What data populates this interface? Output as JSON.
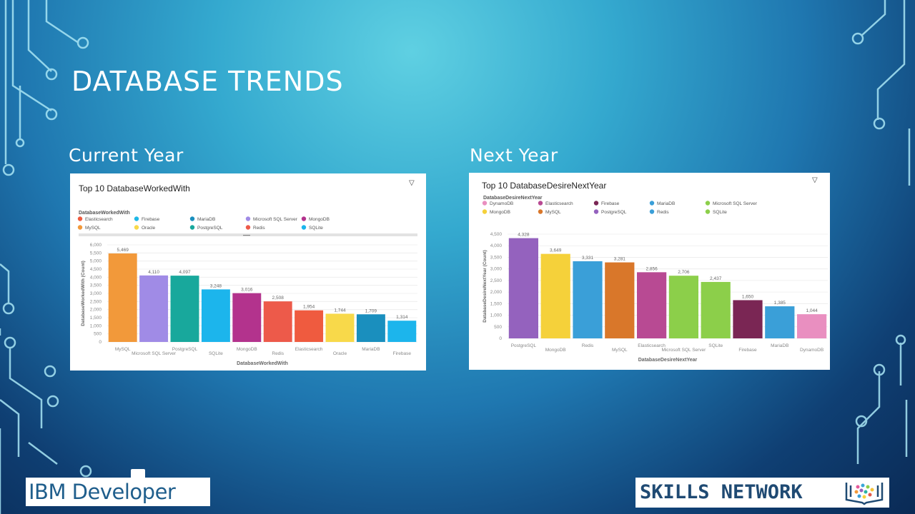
{
  "slide": {
    "title": "DATABASE TRENDS",
    "left_label": "Current Year",
    "right_label": "Next Year",
    "ibm_logo": "IBM Developer",
    "skills_logo": "SKILLS NETWORK"
  },
  "chart_data": [
    {
      "type": "bar",
      "title": "Top 10 DatabaseWorkedWith",
      "legend_title": "DatabaseWorkedWith",
      "legend": [
        {
          "name": "Elasticsearch",
          "color": "#ef5b3f"
        },
        {
          "name": "Firebase",
          "color": "#1fb8e6"
        },
        {
          "name": "MariaDB",
          "color": "#1a8fbe"
        },
        {
          "name": "Microsoft SQL Server",
          "color": "#a08be6"
        },
        {
          "name": "MongoDB",
          "color": "#b3338d"
        },
        {
          "name": "MySQL",
          "color": "#f2993a"
        },
        {
          "name": "Oracle",
          "color": "#f8d94a"
        },
        {
          "name": "PostgreSQL",
          "color": "#18a89c"
        },
        {
          "name": "Redis",
          "color": "#ed5a4a"
        },
        {
          "name": "SQLite",
          "color": "#1cb5ec"
        }
      ],
      "categories": [
        "MySQL",
        "Microsoft SQL Server",
        "PostgreSQL",
        "SQLite",
        "MongoDB",
        "Redis",
        "Elasticsearch",
        "Oracle",
        "MariaDB",
        "Firebase"
      ],
      "values": [
        5469,
        4110,
        4097,
        3248,
        3016,
        2508,
        1954,
        1744,
        1709,
        1314
      ],
      "value_labels": [
        "5,469",
        "4,110",
        "4,097",
        "3,248",
        "3,016",
        "2,508",
        "1,954",
        "1,744",
        "1,709",
        "1,314"
      ],
      "colors": [
        "#f2993a",
        "#a08be6",
        "#18a89c",
        "#1cb5ec",
        "#b3338d",
        "#ed5a4a",
        "#ef5b3f",
        "#f8d94a",
        "#1a8fbe",
        "#1cb5ec"
      ],
      "yticks": [
        0,
        500,
        1000,
        1500,
        2000,
        2500,
        3000,
        3500,
        4000,
        4500,
        5000,
        5500,
        6000
      ],
      "ytick_labels": [
        "0",
        "500",
        "1,000",
        "1,500",
        "2,000",
        "2,500",
        "3,000",
        "3,500",
        "4,000",
        "4,500",
        "5,000",
        "5,500",
        "6,000"
      ],
      "ylim": [
        0,
        6000
      ],
      "xlabel": "DatabaseWorkedWith",
      "ylabel": "DatabaseWorkedWith (Count)",
      "grid": true
    },
    {
      "type": "bar",
      "title": "Top 10 DatabaseDesireNextYear",
      "legend_title": "DatabaseDesireNextYear",
      "legend": [
        {
          "name": "DynamoDB",
          "color": "#e98fc0"
        },
        {
          "name": "Elasticsearch",
          "color": "#b84a93"
        },
        {
          "name": "Firebase",
          "color": "#7a2654"
        },
        {
          "name": "MariaDB",
          "color": "#3a9fd8"
        },
        {
          "name": "Microsoft SQL Server",
          "color": "#8ccf4a"
        },
        {
          "name": "MongoDB",
          "color": "#f5d13a"
        },
        {
          "name": "MySQL",
          "color": "#d9772a"
        },
        {
          "name": "PostgreSQL",
          "color": "#9462be"
        },
        {
          "name": "Redis",
          "color": "#3a9fd8"
        },
        {
          "name": "SQLite",
          "color": "#8ccf4a"
        }
      ],
      "categories": [
        "PostgreSQL",
        "MongoDB",
        "Redis",
        "MySQL",
        "Elasticsearch",
        "Microsoft SQL Server",
        "SQLite",
        "Firebase",
        "MariaDB",
        "DynamoDB"
      ],
      "values": [
        4328,
        3649,
        3331,
        3281,
        2856,
        2706,
        2437,
        1650,
        1385,
        1044
      ],
      "value_labels": [
        "4,328",
        "3,649",
        "3,331",
        "3,281",
        "2,856",
        "2,706",
        "2,437",
        "1,650",
        "1,385",
        "1,044"
      ],
      "colors": [
        "#9462be",
        "#f5d13a",
        "#3a9fd8",
        "#d9772a",
        "#b84a93",
        "#8ccf4a",
        "#8ccf4a",
        "#7a2654",
        "#3a9fd8",
        "#e98fc0"
      ],
      "yticks": [
        0,
        500,
        1000,
        1500,
        2000,
        2500,
        3000,
        3500,
        4000,
        4500
      ],
      "ytick_labels": [
        "0",
        "500",
        "1,000",
        "1,500",
        "2,000",
        "2,500",
        "3,000",
        "3,500",
        "4,000",
        "4,500"
      ],
      "ylim": [
        0,
        4500
      ],
      "xlabel": "DatabaseDesireNextYear",
      "ylabel": "DatabaseDesireNextYear (Count)",
      "grid": true
    }
  ]
}
